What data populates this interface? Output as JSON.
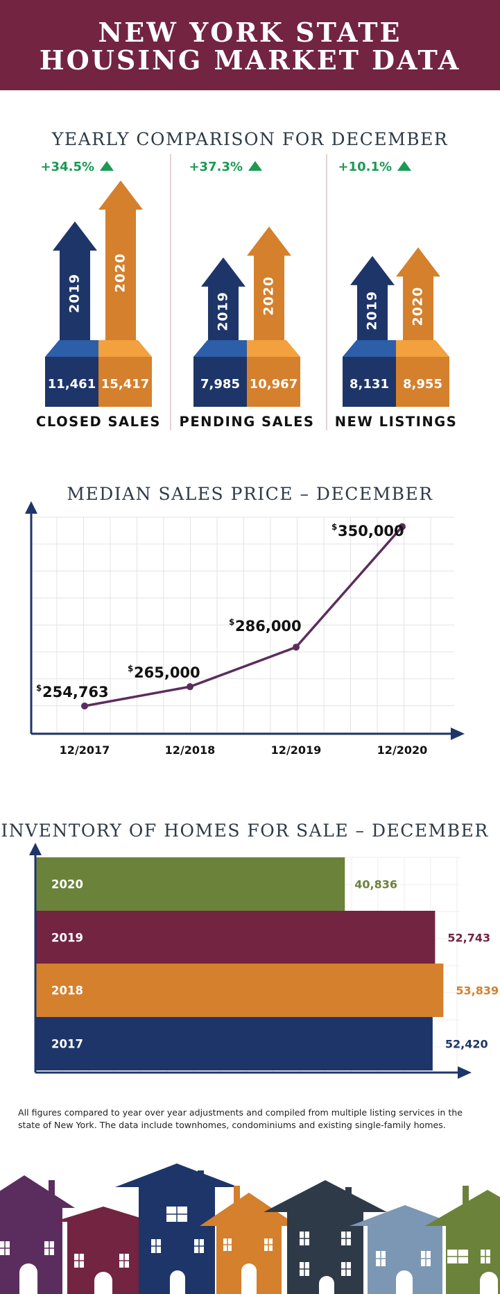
{
  "header": {
    "line1": "NEW YORK STATE",
    "line2": "HOUSING MARKET DATA",
    "bg_color": "#722440"
  },
  "yearly": {
    "title": "YEARLY COMPARISON FOR DECEMBER",
    "colors": {
      "year_a": "#1e3569",
      "year_a_top": "#2d5ea8",
      "year_b": "#d4802c",
      "year_b_top": "#f2a13e",
      "change": "#1a9a52"
    },
    "groups": [
      {
        "label": "CLOSED SALES",
        "change": "+34.5%",
        "year_a": "2019",
        "year_b": "2020",
        "value_a_label": "11,461",
        "value_b_label": "15,417",
        "value_a": 11461,
        "value_b": 15417
      },
      {
        "label": "PENDING SALES",
        "change": "+37.3%",
        "year_a": "2019",
        "year_b": "2020",
        "value_a_label": "7,985",
        "value_b_label": "10,967",
        "value_a": 7985,
        "value_b": 10967
      },
      {
        "label": "NEW LISTINGS",
        "change": "+10.1%",
        "year_a": "2019",
        "year_b": "2020",
        "value_a_label": "8,131",
        "value_b_label": "8,955",
        "value_a": 8131,
        "value_b": 8955
      }
    ]
  },
  "chart_data": [
    {
      "type": "line",
      "title": "MEDIAN SALES PRICE – DECEMBER",
      "x": [
        "12/2017",
        "12/2018",
        "12/2019",
        "12/2020"
      ],
      "series": [
        {
          "values": [
            254763,
            265000,
            286000,
            350000
          ]
        }
      ],
      "point_labels": [
        "254,763",
        "265,000",
        "286,000",
        "350,000"
      ],
      "currency_symbol": "$",
      "ylim": [
        240000,
        355000
      ],
      "grid": true,
      "line_color": "#5b2d5e",
      "axis_color": "#1e3569"
    },
    {
      "type": "bar",
      "orientation": "horizontal",
      "title": "INVENTORY OF HOMES FOR SALE – DECEMBER",
      "categories": [
        "2020",
        "2019",
        "2018",
        "2017"
      ],
      "values": [
        40836,
        52743,
        53839,
        52420
      ],
      "value_labels": [
        "40,836",
        "52,743",
        "53,839",
        "52,420"
      ],
      "colors": [
        "#6b823a",
        "#722440",
        "#d4802c",
        "#1e3569"
      ],
      "xlim": [
        0,
        56000
      ],
      "grid": true,
      "axis_color": "#1e3569"
    }
  ],
  "footnote": {
    "line1": "All figures compared to year over year adjustments and compiled from multiple listing services in the",
    "line2": "state of New York.  The data include townhomes, condominiums and existing single-family homes."
  },
  "houses": {
    "colors": [
      "#5b2d5e",
      "#722440",
      "#1e3569",
      "#d4802c",
      "#2e3a48",
      "#7b97b3",
      "#6b823a"
    ]
  }
}
